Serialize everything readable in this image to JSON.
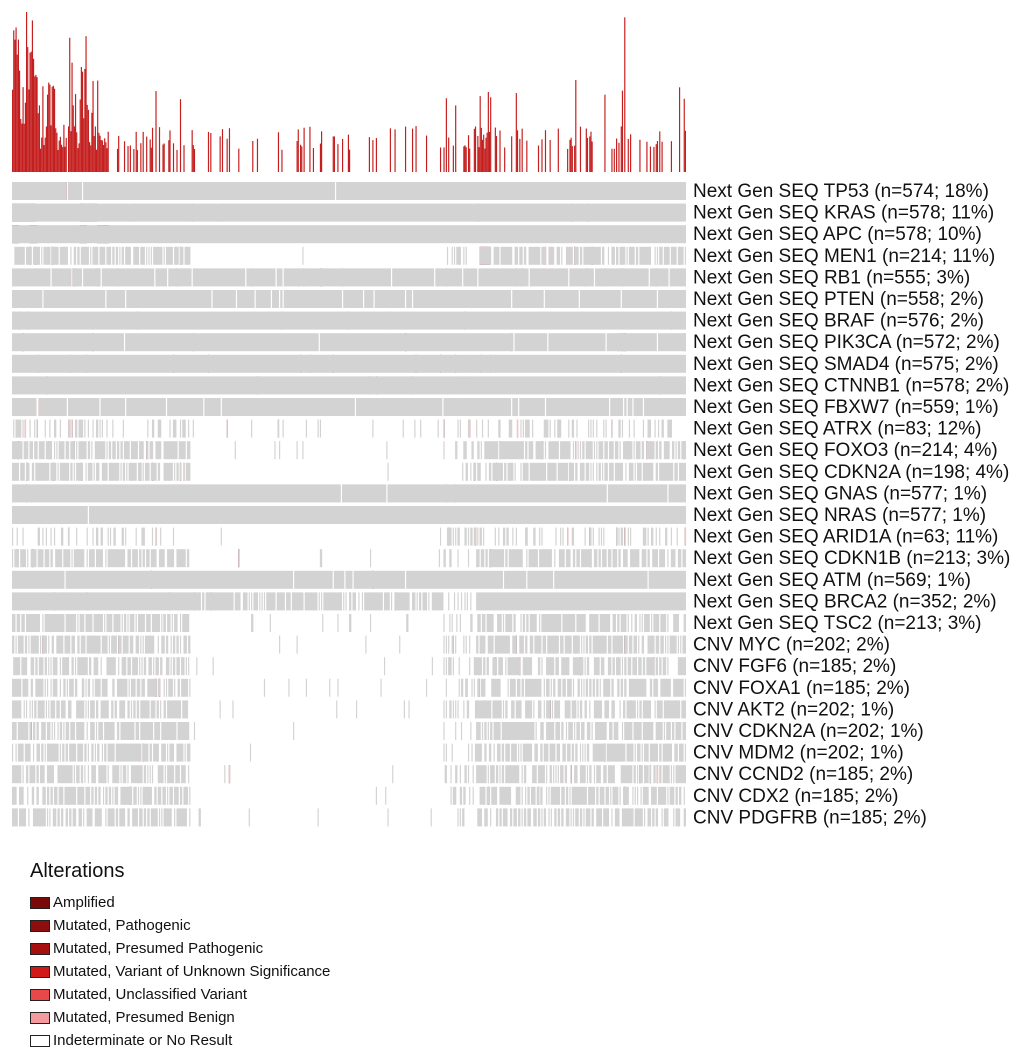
{
  "chart_data": {
    "type": "oncoprint",
    "title": "",
    "n_samples": 578,
    "rows": [
      {
        "label": "Next Gen SEQ TP53 (n=574; 18%)",
        "assay": "Next Gen SEQ",
        "gene": "TP53",
        "n": 574,
        "pct": 18
      },
      {
        "label": "Next Gen SEQ KRAS (n=578; 11%)",
        "assay": "Next Gen SEQ",
        "gene": "KRAS",
        "n": 578,
        "pct": 11
      },
      {
        "label": "Next Gen SEQ APC (n=578; 10%)",
        "assay": "Next Gen SEQ",
        "gene": "APC",
        "n": 578,
        "pct": 10
      },
      {
        "label": "Next Gen SEQ MEN1 (n=214; 11%)",
        "assay": "Next Gen SEQ",
        "gene": "MEN1",
        "n": 214,
        "pct": 11
      },
      {
        "label": "Next Gen SEQ RB1 (n=555; 3%)",
        "assay": "Next Gen SEQ",
        "gene": "RB1",
        "n": 555,
        "pct": 3
      },
      {
        "label": "Next Gen SEQ PTEN (n=558; 2%)",
        "assay": "Next Gen SEQ",
        "gene": "PTEN",
        "n": 558,
        "pct": 2
      },
      {
        "label": "Next Gen SEQ BRAF (n=576; 2%)",
        "assay": "Next Gen SEQ",
        "gene": "BRAF",
        "n": 576,
        "pct": 2
      },
      {
        "label": "Next Gen SEQ PIK3CA (n=572; 2%)",
        "assay": "Next Gen SEQ",
        "gene": "PIK3CA",
        "n": 572,
        "pct": 2
      },
      {
        "label": "Next Gen SEQ SMAD4 (n=575; 2%)",
        "assay": "Next Gen SEQ",
        "gene": "SMAD4",
        "n": 575,
        "pct": 2
      },
      {
        "label": "Next Gen SEQ CTNNB1 (n=578; 2%)",
        "assay": "Next Gen SEQ",
        "gene": "CTNNB1",
        "n": 578,
        "pct": 2
      },
      {
        "label": "Next Gen SEQ FBXW7 (n=559; 1%)",
        "assay": "Next Gen SEQ",
        "gene": "FBXW7",
        "n": 559,
        "pct": 1
      },
      {
        "label": "Next Gen SEQ ATRX (n=83; 12%)",
        "assay": "Next Gen SEQ",
        "gene": "ATRX",
        "n": 83,
        "pct": 12
      },
      {
        "label": "Next Gen SEQ FOXO3 (n=214; 4%)",
        "assay": "Next Gen SEQ",
        "gene": "FOXO3",
        "n": 214,
        "pct": 4
      },
      {
        "label": "Next Gen SEQ CDKN2A (n=198; 4%)",
        "assay": "Next Gen SEQ",
        "gene": "CDKN2A",
        "n": 198,
        "pct": 4
      },
      {
        "label": "Next Gen SEQ GNAS (n=577; 1%)",
        "assay": "Next Gen SEQ",
        "gene": "GNAS",
        "n": 577,
        "pct": 1
      },
      {
        "label": "Next Gen SEQ NRAS (n=577; 1%)",
        "assay": "Next Gen SEQ",
        "gene": "NRAS",
        "n": 577,
        "pct": 1
      },
      {
        "label": "Next Gen SEQ ARID1A (n=63; 11%)",
        "assay": "Next Gen SEQ",
        "gene": "ARID1A",
        "n": 63,
        "pct": 11
      },
      {
        "label": "Next Gen SEQ CDKN1B (n=213; 3%)",
        "assay": "Next Gen SEQ",
        "gene": "CDKN1B",
        "n": 213,
        "pct": 3
      },
      {
        "label": "Next Gen SEQ ATM (n=569; 1%)",
        "assay": "Next Gen SEQ",
        "gene": "ATM",
        "n": 569,
        "pct": 1
      },
      {
        "label": "Next Gen SEQ BRCA2 (n=352; 2%)",
        "assay": "Next Gen SEQ",
        "gene": "BRCA2",
        "n": 352,
        "pct": 2
      },
      {
        "label": "Next Gen SEQ TSC2 (n=213; 3%)",
        "assay": "Next Gen SEQ",
        "gene": "TSC2",
        "n": 213,
        "pct": 3
      },
      {
        "label": "CNV MYC (n=202; 2%)",
        "assay": "CNV",
        "gene": "MYC",
        "n": 202,
        "pct": 2
      },
      {
        "label": "CNV FGF6 (n=185; 2%)",
        "assay": "CNV",
        "gene": "FGF6",
        "n": 185,
        "pct": 2
      },
      {
        "label": "CNV FOXA1 (n=185; 2%)",
        "assay": "CNV",
        "gene": "FOXA1",
        "n": 185,
        "pct": 2
      },
      {
        "label": "CNV AKT2 (n=202; 1%)",
        "assay": "CNV",
        "gene": "AKT2",
        "n": 202,
        "pct": 1
      },
      {
        "label": "CNV CDKN2A (n=202; 1%)",
        "assay": "CNV",
        "gene": "CDKN2A",
        "n": 202,
        "pct": 1
      },
      {
        "label": "CNV MDM2 (n=202; 1%)",
        "assay": "CNV",
        "gene": "MDM2",
        "n": 202,
        "pct": 1
      },
      {
        "label": "CNV CCND2 (n=185; 2%)",
        "assay": "CNV",
        "gene": "CCND2",
        "n": 185,
        "pct": 2
      },
      {
        "label": "CNV CDX2 (n=185; 2%)",
        "assay": "CNV",
        "gene": "CDX2",
        "n": 185,
        "pct": 2
      },
      {
        "label": "CNV PDGFRB (n=185; 2%)",
        "assay": "CNV",
        "gene": "PDGFRB",
        "n": 185,
        "pct": 2
      }
    ],
    "top_histogram": "alteration count per sample (stacked bars above the matrix)"
  },
  "legend": {
    "title": "Alterations",
    "items": [
      {
        "label": "Amplified",
        "color": "#7a0a0a"
      },
      {
        "label": "Mutated, Pathogenic",
        "color": "#8e0e0e"
      },
      {
        "label": "Mutated, Presumed Pathogenic",
        "color": "#a81010"
      },
      {
        "label": "Mutated, Variant of Unknown Significance",
        "color": "#d01a1a"
      },
      {
        "label": "Mutated, Unclassified Variant",
        "color": "#e8484a"
      },
      {
        "label": "Mutated, Presumed Benign",
        "color": "#f29a9e"
      },
      {
        "label": "Indeterminate or No Result",
        "color": "#ffffff"
      }
    ]
  },
  "colors": {
    "tested_no_alteration": "#d3d3d3",
    "histogram": "#c41e1e"
  }
}
